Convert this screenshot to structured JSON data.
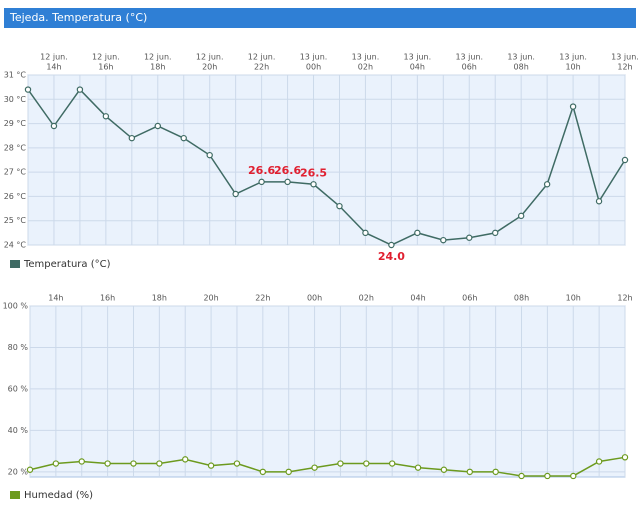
{
  "header": {
    "title": "Tejeda. Temperatura (°C)"
  },
  "chart_data": [
    {
      "type": "line",
      "categories": [
        null,
        [
          "12 jun.",
          "14h"
        ],
        null,
        [
          "12 jun.",
          "16h"
        ],
        null,
        [
          "12 jun.",
          "18h"
        ],
        null,
        [
          "12 jun.",
          "20h"
        ],
        null,
        [
          "12 jun.",
          "22h"
        ],
        null,
        [
          "13 jun.",
          "00h"
        ],
        null,
        [
          "13 jun.",
          "02h"
        ],
        null,
        [
          "13 jun.",
          "04h"
        ],
        null,
        [
          "13 jun.",
          "06h"
        ],
        null,
        [
          "13 jun.",
          "08h"
        ],
        null,
        [
          "13 jun.",
          "10h"
        ],
        null,
        [
          "13 jun.",
          "12h"
        ]
      ],
      "series": [
        {
          "name": "Temperatura (°C)",
          "color": "#3f6b64",
          "values": [
            30.4,
            28.9,
            30.4,
            29.3,
            28.4,
            28.9,
            28.4,
            27.7,
            26.1,
            26.6,
            26.6,
            26.5,
            25.6,
            24.5,
            24.0,
            24.5,
            24.2,
            24.3,
            24.5,
            25.2,
            26.5,
            29.7,
            25.8,
            27.5
          ],
          "value_labels": [
            null,
            null,
            null,
            null,
            null,
            null,
            null,
            null,
            null,
            "26.6",
            "26.6",
            "26.5",
            null,
            null,
            "24.0",
            null,
            null,
            null,
            null,
            null,
            null,
            null,
            null,
            null
          ]
        }
      ],
      "ylim": [
        24,
        31
      ],
      "yticks": [
        {
          "value": 24,
          "label": "24 °C"
        },
        {
          "value": 25,
          "label": "25 °C"
        },
        {
          "value": 26,
          "label": "26 °C"
        },
        {
          "value": 27,
          "label": "27 °C"
        },
        {
          "value": 28,
          "label": "28 °C"
        },
        {
          "value": 29,
          "label": "29 °C"
        },
        {
          "value": 30,
          "label": "30 °C"
        },
        {
          "value": 31,
          "label": "31 °C"
        }
      ],
      "grid": true,
      "legend": "bottom-left"
    },
    {
      "type": "line",
      "categories": [
        null,
        "14h",
        null,
        "16h",
        null,
        "18h",
        null,
        "20h",
        null,
        "22h",
        null,
        "00h",
        null,
        "02h",
        null,
        "04h",
        null,
        "06h",
        null,
        "08h",
        null,
        "10h",
        null,
        "12h"
      ],
      "series": [
        {
          "name": "Humedad (%)",
          "color": "#6c9a1e",
          "values": [
            21,
            24,
            25,
            24,
            24,
            24,
            26,
            23,
            24,
            20,
            20,
            22,
            24,
            24,
            24,
            22,
            21,
            20,
            20,
            18,
            18,
            18,
            25,
            27
          ]
        }
      ],
      "ylim": [
        17.5,
        100
      ],
      "yticks": [
        {
          "value": 20,
          "label": "20 %"
        },
        {
          "value": 40,
          "label": "40 %"
        },
        {
          "value": 60,
          "label": "60 %"
        },
        {
          "value": 80,
          "label": "80 %"
        },
        {
          "value": 100,
          "label": "100 %"
        }
      ],
      "grid": true,
      "legend": "bottom-left"
    }
  ]
}
